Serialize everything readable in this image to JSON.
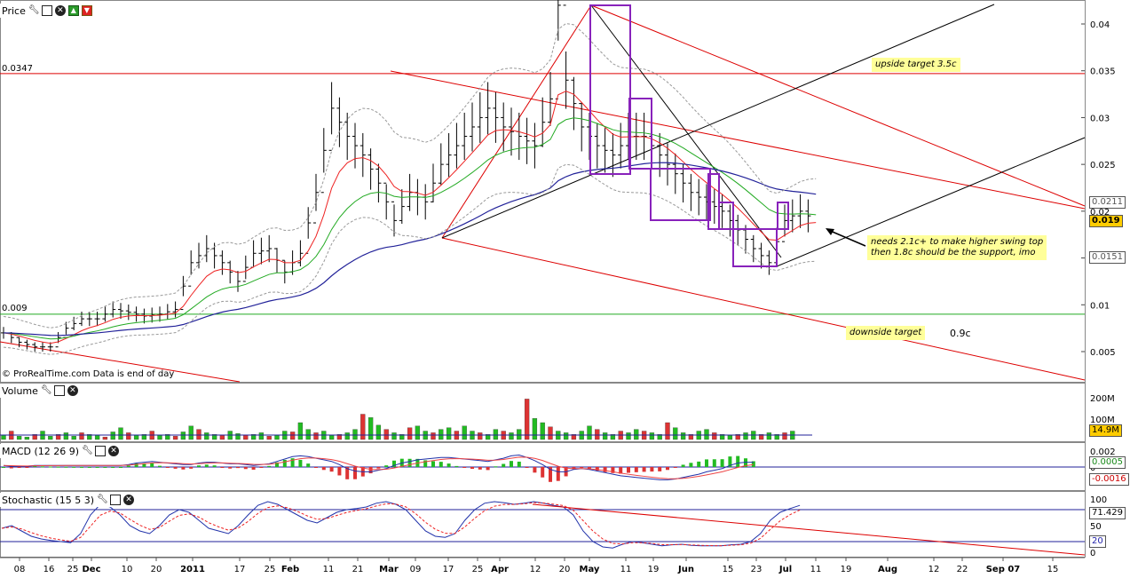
{
  "panels": {
    "price": {
      "title": "Price"
    },
    "volume": {
      "title": "Volume"
    },
    "macd": {
      "title": "MACD (12 26 9)"
    },
    "stoch": {
      "title": "Stochastic (15 5 3)"
    }
  },
  "watermark": "© ProRealTime.com  Data is end of day",
  "levels": {
    "resistance_label": "0.0347",
    "support_label": "0.009"
  },
  "annotations": {
    "upside": "upside target 3.5c",
    "downside": "downside target",
    "downside_value": "0.9c",
    "needs_line1": "needs 2.1c+ to make  higher swing top",
    "needs_line2": "then 1.8c should be the support, imo"
  },
  "value_tags": {
    "price_a": "0.0211",
    "price_last": "0.019",
    "price_b": "0.0151",
    "volume": "14.9M",
    "macd_a": "0.0005",
    "macd_b": "-0.0016",
    "stoch_a": "71.429",
    "stoch_b": "20"
  },
  "colors": {
    "up": "#22bb22",
    "down": "#dd3333",
    "ma_red": "#ee2222",
    "ma_green": "#22aa22",
    "ma_blue": "#222299",
    "channel": "#dd0000",
    "box": "#8822bb"
  },
  "chart_data": {
    "type": "line",
    "title": "Price",
    "ylim": [
      0.002,
      0.044
    ],
    "price_axis": {
      "ticks": [
        "0.04",
        "0.035",
        "0.03",
        "0.025",
        "0.02",
        "0.015",
        "0.01",
        "0.005"
      ]
    },
    "volume_axis": {
      "ticks": [
        "200M",
        "100M"
      ]
    },
    "macd_axis": {
      "ticks": [
        "0.002",
        "0"
      ]
    },
    "stoch_axis": {
      "ticks": [
        "100",
        "50",
        "0"
      ]
    },
    "x_ticks": [
      "08",
      "16",
      "25",
      "Dec",
      "10",
      "20",
      "2011",
      "17",
      "25",
      "Feb",
      "11",
      "21",
      "Mar",
      "09",
      "17",
      "25",
      "Apr",
      "12",
      "20",
      "May",
      "11",
      "19",
      "Jun",
      "15",
      "23",
      "Jul",
      "11",
      "19",
      "Aug",
      "12",
      "22",
      "Sep 07",
      "15"
    ],
    "price_path": [
      [
        0,
        0.007
      ],
      [
        2,
        0.006
      ],
      [
        4,
        0.0055
      ],
      [
        6,
        0.0055
      ],
      [
        8,
        0.0075
      ],
      [
        10,
        0.0085
      ],
      [
        12,
        0.0085
      ],
      [
        14,
        0.0095
      ],
      [
        16,
        0.0092
      ],
      [
        18,
        0.0088
      ],
      [
        20,
        0.009
      ],
      [
        22,
        0.0095
      ],
      [
        24,
        0.0145
      ],
      [
        26,
        0.016
      ],
      [
        28,
        0.0145
      ],
      [
        30,
        0.0125
      ],
      [
        32,
        0.0155
      ],
      [
        34,
        0.016
      ],
      [
        36,
        0.0135
      ],
      [
        38,
        0.0155
      ],
      [
        40,
        0.022
      ],
      [
        42,
        0.031
      ],
      [
        44,
        0.028
      ],
      [
        46,
        0.026
      ],
      [
        48,
        0.023
      ],
      [
        50,
        0.019
      ],
      [
        52,
        0.022
      ],
      [
        54,
        0.021
      ],
      [
        56,
        0.025
      ],
      [
        58,
        0.027
      ],
      [
        60,
        0.029
      ],
      [
        62,
        0.031
      ],
      [
        64,
        0.029
      ],
      [
        66,
        0.028
      ],
      [
        68,
        0.027
      ],
      [
        70,
        0.032
      ],
      [
        71,
        0.042
      ],
      [
        72,
        0.034
      ],
      [
        74,
        0.029
      ],
      [
        76,
        0.027
      ],
      [
        78,
        0.026
      ],
      [
        80,
        0.028
      ],
      [
        82,
        0.028
      ],
      [
        84,
        0.026
      ],
      [
        86,
        0.024
      ],
      [
        88,
        0.022
      ],
      [
        90,
        0.021
      ],
      [
        92,
        0.02
      ],
      [
        94,
        0.018
      ],
      [
        96,
        0.016
      ],
      [
        98,
        0.0145
      ],
      [
        100,
        0.019
      ],
      [
        102,
        0.02
      ],
      [
        104,
        0.019
      ]
    ],
    "volume": [
      5,
      10,
      4,
      3,
      6,
      10,
      4,
      6,
      8,
      4,
      8,
      6,
      5,
      3,
      9,
      14,
      8,
      5,
      6,
      10,
      5,
      6,
      4,
      9,
      16,
      12,
      8,
      6,
      5,
      10,
      7,
      5,
      6,
      8,
      4,
      5,
      10,
      9,
      20,
      12,
      8,
      10,
      5,
      6,
      8,
      12,
      30,
      26,
      17,
      12,
      8,
      6,
      14,
      16,
      10,
      8,
      12,
      14,
      10,
      16,
      10,
      8,
      6,
      12,
      10,
      8,
      12,
      48,
      25,
      20,
      15,
      10,
      8,
      6,
      10,
      16,
      12,
      8,
      6,
      10,
      8,
      12,
      10,
      8,
      6,
      20,
      14,
      8,
      6,
      10,
      12,
      8,
      6,
      5,
      6,
      8,
      10,
      6,
      8,
      6,
      8,
      10
    ],
    "macd": [
      0.0002,
      0.0001,
      0.0001,
      0.0001,
      0.0002,
      0.0002,
      0.0002,
      0.0002,
      0.0002,
      0.0002,
      0.0002,
      0.0002,
      0.0002,
      0.0002,
      0.0002,
      0.0002,
      0.0003,
      0.0005,
      0.0006,
      0.0007,
      0.0006,
      0.0005,
      0.0004,
      0.0003,
      0.0003,
      0.0005,
      0.0006,
      0.0006,
      0.0005,
      0.0004,
      0.0004,
      0.0003,
      0.0002,
      0.0003,
      0.0004,
      0.0007,
      0.001,
      0.0013,
      0.0014,
      0.0013,
      0.0011,
      0.0009,
      0.0007,
      0.0003,
      -0.0002,
      -0.0005,
      -0.0006,
      -0.0006,
      -0.0004,
      -0.0002,
      0.0002,
      0.0005,
      0.0007,
      0.0009,
      0.001,
      0.0011,
      0.0012,
      0.0012,
      0.0011,
      0.001,
      0.0009,
      0.0008,
      0.0007,
      0.0009,
      0.0011,
      0.0014,
      0.0015,
      0.0012,
      0.0008,
      0.0003,
      -0.0003,
      -0.0006,
      -0.0006,
      -0.0003,
      -0.0002,
      -0.0003,
      -0.0005,
      -0.0007,
      -0.0009,
      -0.0011,
      -0.0012,
      -0.0013,
      -0.0014,
      -0.0015,
      -0.0016,
      -0.0016,
      -0.0015,
      -0.0013,
      -0.0011,
      -0.0009,
      -0.0006,
      -0.0004,
      -0.0002,
      0.0002,
      0.0005,
      0.0006,
      0.0006
    ],
    "stoch": [
      45,
      50,
      40,
      30,
      25,
      22,
      20,
      18,
      35,
      70,
      90,
      85,
      70,
      50,
      40,
      35,
      50,
      70,
      80,
      75,
      60,
      45,
      40,
      35,
      50,
      70,
      88,
      95,
      90,
      80,
      70,
      60,
      55,
      65,
      75,
      80,
      82,
      85,
      92,
      95,
      90,
      80,
      60,
      40,
      30,
      28,
      35,
      60,
      80,
      92,
      95,
      93,
      90,
      92,
      95,
      92,
      88,
      85,
      70,
      40,
      20,
      10,
      8,
      15,
      20,
      18,
      15,
      12,
      14,
      15,
      13,
      12,
      12,
      12,
      14,
      15,
      20,
      35,
      60,
      75,
      82,
      88
    ]
  }
}
